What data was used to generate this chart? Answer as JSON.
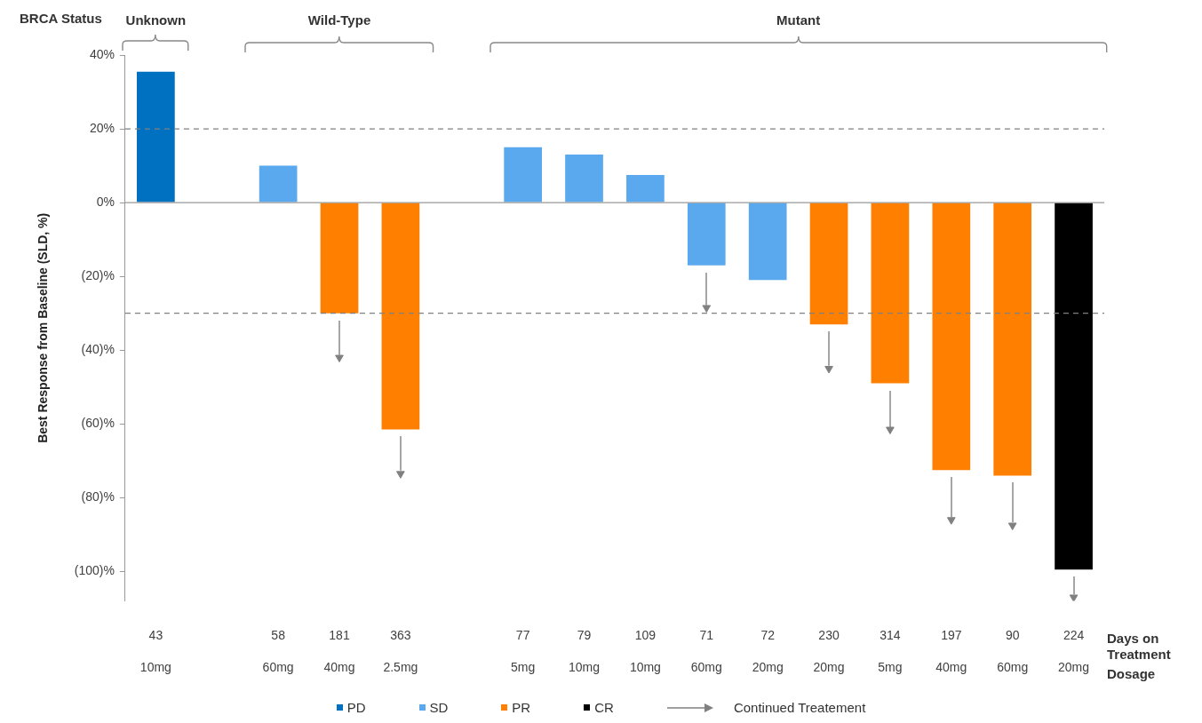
{
  "chart_data": {
    "type": "bar",
    "ylabel": "Best Response from Baseline (SLD, %)",
    "categories": [
      "43\n10mg",
      null,
      "58\n60mg",
      "181\n40mg",
      "363\n2.5mg",
      null,
      "77\n5mg",
      "79\n10mg",
      "109\n10mg",
      "71\n60mg",
      "72\n20mg",
      "230\n20mg",
      "314\n5mg",
      "197\n40mg",
      "90\n60mg",
      "224\n20mg"
    ],
    "series": [
      {
        "name": "PD",
        "color": "#0070c0",
        "values": [
          35.5,
          null,
          null,
          null,
          null,
          null,
          null,
          null,
          null,
          null,
          null,
          null,
          null,
          null,
          null,
          null
        ]
      },
      {
        "name": "SD",
        "color": "#5aa9ee",
        "values": [
          null,
          null,
          10,
          null,
          null,
          null,
          15,
          13,
          7.5,
          -17,
          -21,
          null,
          null,
          null,
          null,
          null
        ]
      },
      {
        "name": "PR",
        "color": "#ff8000",
        "values": [
          null,
          null,
          null,
          -30,
          -61.5,
          null,
          null,
          null,
          null,
          null,
          null,
          -33,
          -49,
          -72.5,
          -74,
          null
        ]
      },
      {
        "name": "CR",
        "color": "#000000",
        "values": [
          null,
          null,
          null,
          null,
          null,
          null,
          null,
          null,
          null,
          null,
          null,
          null,
          null,
          null,
          null,
          -99.5
        ]
      },
      {
        "name": "Continued Treatement",
        "type": "scatter",
        "color": "#808080",
        "x": [
          "181\n40mg",
          "363\n2.5mg",
          "71\n60mg",
          "230\n20mg",
          "314\n5mg",
          "197\n40mg",
          "90\n60mg",
          "224\n20mg"
        ],
        "values": [
          -42,
          -73.5,
          -28.5,
          -45,
          -61.5,
          -86,
          -87.5,
          -107
        ],
        "marker": "triangle"
      }
    ],
    "ylim": [
      -108,
      40
    ],
    "yticks": [
      {
        "value": -100,
        "label": "(100)%"
      },
      {
        "value": -80,
        "label": "(80)%"
      },
      {
        "value": -60,
        "label": "(60)%"
      },
      {
        "value": -40,
        "label": "(40)%"
      },
      {
        "value": -20,
        "label": "(20)%"
      },
      {
        "value": 0,
        "label": "0%"
      },
      {
        "value": 20,
        "label": "20%"
      },
      {
        "value": 40,
        "label": "40%"
      }
    ],
    "ref_lines": [
      {
        "axis": "y",
        "value": 20,
        "color": "#808080",
        "line_style": "dashed"
      },
      {
        "axis": "y",
        "value": -30,
        "color": "#808080",
        "line_style": "dashed"
      }
    ],
    "annotations": [
      "BRCA Status",
      "Unknown",
      "Wild-Type",
      "Mutant",
      "Days on\nTreatment",
      "Dosage"
    ],
    "grid": false,
    "legend": "bottom"
  }
}
